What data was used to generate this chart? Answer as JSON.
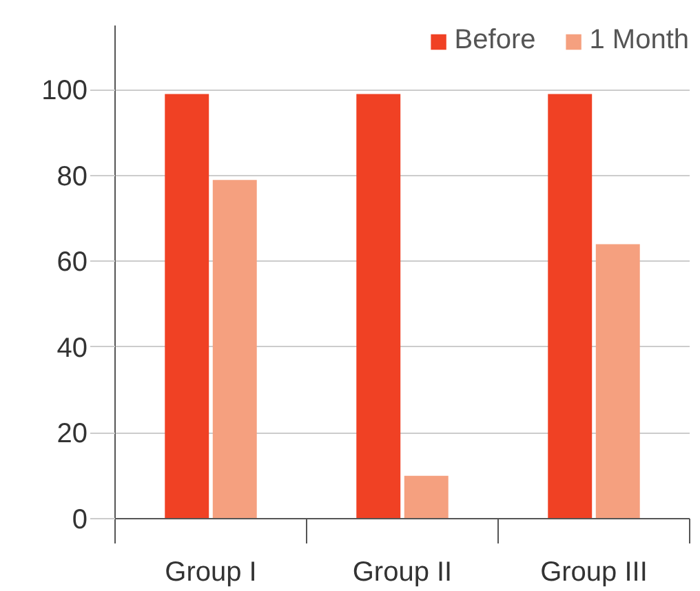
{
  "chart_data": {
    "type": "bar",
    "categories": [
      "Group I",
      "Group II",
      "Group III"
    ],
    "series": [
      {
        "name": "Before",
        "color": "#f04124",
        "values": [
          99,
          99,
          99
        ]
      },
      {
        "name": "1 Month",
        "color": "#f5a07f",
        "values": [
          79,
          10,
          64
        ]
      }
    ],
    "ylim": [
      0,
      115
    ],
    "yticks": [
      0,
      20,
      40,
      60,
      80,
      100
    ],
    "grid": "y",
    "legend": "top right"
  }
}
